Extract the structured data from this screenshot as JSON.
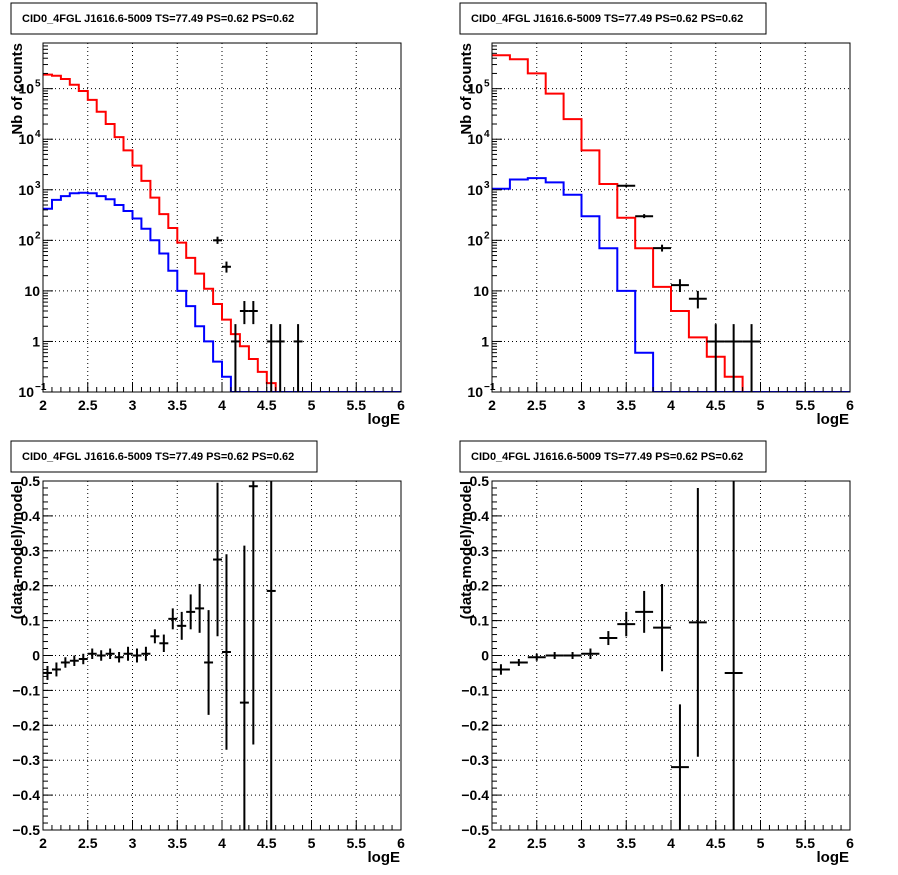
{
  "colors": {
    "data": "#000000",
    "total_model": "#ff0000",
    "source_model": "#0000ff",
    "grid": "#000000"
  },
  "chart_data": [
    {
      "id": "counts_fine",
      "type": "step",
      "title": "CID0_4FGL J1616.6-5009 TS=77.49 PS=0.62 PS=0.62",
      "xlabel": "logE",
      "ylabel": "Nb of counts",
      "xlim": [
        2,
        6
      ],
      "ylim": [
        0.1,
        800000
      ],
      "yscale": "log",
      "grid": true,
      "x_ticks": [
        "2",
        "2.5",
        "3",
        "3.5",
        "4",
        "4.5",
        "5",
        "5.5",
        "6"
      ],
      "y_ticks": [
        {
          "value": 0.1,
          "label": "10",
          "sup": "−1"
        },
        {
          "value": 1,
          "label": "1",
          "sup": ""
        },
        {
          "value": 10,
          "label": "10",
          "sup": ""
        },
        {
          "value": 100,
          "label": "10",
          "sup": "2"
        },
        {
          "value": 1000,
          "label": "10",
          "sup": "3"
        },
        {
          "value": 10000,
          "label": "10",
          "sup": "4"
        },
        {
          "value": 100000,
          "label": "10",
          "sup": "5"
        }
      ],
      "bin_edges_start": 2.0,
      "bin_width": 0.1,
      "series": [
        {
          "color_key": "total_model",
          "values": [
            190000,
            180000,
            155000,
            120000,
            90000,
            60000,
            35000,
            20000,
            11000,
            6000,
            3000,
            1500,
            700,
            330,
            175,
            90,
            45,
            22,
            11,
            5.5,
            2.7,
            1.4,
            0.8,
            0.45,
            0.25,
            0.15,
            0.1,
            0.1,
            0.1,
            0.1,
            0.1,
            0.1,
            0.1,
            0.1,
            0.1,
            0.1,
            0.1,
            0.1,
            0.1,
            0.1
          ]
        },
        {
          "color_key": "source_model",
          "values": [
            420,
            630,
            750,
            850,
            870,
            850,
            750,
            650,
            500,
            380,
            270,
            170,
            100,
            55,
            25,
            10,
            5,
            2,
            1,
            0.4,
            0.2,
            0.1,
            0.1,
            0.1,
            0.1,
            0.1,
            0.1,
            0.1,
            0.1,
            0.1,
            0.1,
            0.1,
            0.1,
            0.1,
            0.1,
            0.1,
            0.1,
            0.1,
            0.1,
            0.1
          ]
        }
      ],
      "points": [
        {
          "x": 3.95,
          "y": 100,
          "lo": 85,
          "hi": 118
        },
        {
          "x": 4.05,
          "y": 30,
          "lo": 23,
          "hi": 38
        },
        {
          "x": 4.15,
          "y": 1,
          "lo": 0.1,
          "hi": 2.2
        },
        {
          "x": 4.25,
          "y": 4,
          "lo": 2.2,
          "hi": 6.3
        },
        {
          "x": 4.35,
          "y": 4,
          "lo": 2.2,
          "hi": 6.3
        },
        {
          "x": 4.55,
          "y": 1,
          "lo": 0.1,
          "hi": 2.2
        },
        {
          "x": 4.65,
          "y": 1,
          "lo": 0.1,
          "hi": 2.2
        },
        {
          "x": 4.85,
          "y": 1,
          "lo": 0.1,
          "hi": 2.2
        }
      ]
    },
    {
      "id": "counts_coarse",
      "type": "step",
      "title": "CID0_4FGL J1616.6-5009 TS=77.49 PS=0.62 PS=0.62",
      "xlabel": "logE",
      "ylabel": "Nb of counts",
      "xlim": [
        2,
        6
      ],
      "ylim": [
        0.1,
        800000
      ],
      "yscale": "log",
      "grid": true,
      "x_ticks": [
        "2",
        "2.5",
        "3",
        "3.5",
        "4",
        "4.5",
        "5",
        "5.5",
        "6"
      ],
      "y_ticks": [
        {
          "value": 0.1,
          "label": "10",
          "sup": "−1"
        },
        {
          "value": 1,
          "label": "1",
          "sup": ""
        },
        {
          "value": 10,
          "label": "10",
          "sup": ""
        },
        {
          "value": 100,
          "label": "10",
          "sup": "2"
        },
        {
          "value": 1000,
          "label": "10",
          "sup": "3"
        },
        {
          "value": 10000,
          "label": "10",
          "sup": "4"
        },
        {
          "value": 100000,
          "label": "10",
          "sup": "5"
        }
      ],
      "bin_edges_start": 2.0,
      "bin_width": 0.2,
      "series": [
        {
          "color_key": "total_model",
          "values": [
            460000,
            380000,
            200000,
            80000,
            25000,
            6000,
            1300,
            280,
            70,
            12,
            4,
            1.2,
            0.5,
            0.2,
            0.1,
            0.1,
            0.1,
            0.1,
            0.1,
            0.1
          ]
        },
        {
          "color_key": "source_model",
          "values": [
            1050,
            1600,
            1700,
            1400,
            800,
            300,
            70,
            10,
            0.6,
            0.1,
            0.1,
            0.1,
            0.1,
            0.1,
            0.1,
            0.1,
            0.1,
            0.1,
            0.1,
            0.1
          ]
        }
      ],
      "points": [
        {
          "x": 3.5,
          "y": 1200,
          "lo": 1130,
          "hi": 1270
        },
        {
          "x": 3.7,
          "y": 300,
          "lo": 275,
          "hi": 330
        },
        {
          "x": 3.9,
          "y": 70,
          "lo": 60,
          "hi": 82
        },
        {
          "x": 4.1,
          "y": 13,
          "lo": 9.5,
          "hi": 17
        },
        {
          "x": 4.3,
          "y": 7,
          "lo": 4.5,
          "hi": 10
        },
        {
          "x": 4.5,
          "y": 1,
          "lo": 0.1,
          "hi": 2.2
        },
        {
          "x": 4.7,
          "y": 1,
          "lo": 0.1,
          "hi": 2.2
        },
        {
          "x": 4.9,
          "y": 1,
          "lo": 0.1,
          "hi": 2.2
        }
      ]
    },
    {
      "id": "residual_fine",
      "type": "scatter",
      "title": "CID0_4FGL J1616.6-5009 TS=77.49 PS=0.62 PS=0.62",
      "xlabel": "logE",
      "ylabel": "(data-model)/model",
      "xlim": [
        2,
        6
      ],
      "ylim": [
        -0.5,
        0.5
      ],
      "yscale": "linear",
      "grid": true,
      "x_ticks": [
        "2",
        "2.5",
        "3",
        "3.5",
        "4",
        "4.5",
        "5",
        "5.5",
        "6"
      ],
      "y_ticks": [
        {
          "value": -0.5,
          "label": "−0.5"
        },
        {
          "value": -0.4,
          "label": "−0.4"
        },
        {
          "value": -0.3,
          "label": "−0.3"
        },
        {
          "value": -0.2,
          "label": "−0.2"
        },
        {
          "value": -0.1,
          "label": "−0.1"
        },
        {
          "value": 0,
          "label": "0"
        },
        {
          "value": 0.1,
          "label": "0.1"
        },
        {
          "value": 0.2,
          "label": "0.2"
        },
        {
          "value": 0.3,
          "label": "0.3"
        },
        {
          "value": 0.4,
          "label": "0.4"
        },
        {
          "value": 0.5,
          "label": "0.5"
        }
      ],
      "x_halfwidth": 0.05,
      "points": [
        {
          "x": 2.05,
          "y": -0.05,
          "err": 0.02
        },
        {
          "x": 2.15,
          "y": -0.04,
          "err": 0.02
        },
        {
          "x": 2.25,
          "y": -0.02,
          "err": 0.015
        },
        {
          "x": 2.35,
          "y": -0.015,
          "err": 0.015
        },
        {
          "x": 2.45,
          "y": -0.01,
          "err": 0.015
        },
        {
          "x": 2.55,
          "y": 0.005,
          "err": 0.015
        },
        {
          "x": 2.65,
          "y": 0.0,
          "err": 0.015
        },
        {
          "x": 2.75,
          "y": 0.005,
          "err": 0.015
        },
        {
          "x": 2.85,
          "y": -0.005,
          "err": 0.015
        },
        {
          "x": 2.95,
          "y": 0.005,
          "err": 0.02
        },
        {
          "x": 3.05,
          "y": 0.0,
          "err": 0.02
        },
        {
          "x": 3.15,
          "y": 0.005,
          "err": 0.02
        },
        {
          "x": 3.25,
          "y": 0.055,
          "err": 0.02
        },
        {
          "x": 3.35,
          "y": 0.035,
          "err": 0.025
        },
        {
          "x": 3.45,
          "y": 0.105,
          "err": 0.03
        },
        {
          "x": 3.55,
          "y": 0.085,
          "err": 0.04
        },
        {
          "x": 3.65,
          "y": 0.125,
          "err": 0.05
        },
        {
          "x": 3.75,
          "y": 0.135,
          "err": 0.07
        },
        {
          "x": 3.85,
          "y": -0.02,
          "err": 0.15
        },
        {
          "x": 3.95,
          "y": 0.275,
          "err": 0.22
        },
        {
          "x": 4.05,
          "y": 0.01,
          "err": 0.28
        },
        {
          "x": 4.25,
          "y": -0.135,
          "err": 0.45
        },
        {
          "x": 4.35,
          "y": 0.485,
          "err": 0.74
        },
        {
          "x": 4.55,
          "y": 0.185,
          "err": 0.9
        }
      ]
    },
    {
      "id": "residual_coarse",
      "type": "scatter",
      "title": "CID0_4FGL J1616.6-5009 TS=77.49 PS=0.62 PS=0.62",
      "xlabel": "logE",
      "ylabel": "(data-model)/model",
      "xlim": [
        2,
        6
      ],
      "ylim": [
        -0.5,
        0.5
      ],
      "yscale": "linear",
      "grid": true,
      "x_ticks": [
        "2",
        "2.5",
        "3",
        "3.5",
        "4",
        "4.5",
        "5",
        "5.5",
        "6"
      ],
      "y_ticks": [
        {
          "value": -0.5,
          "label": "−0.5"
        },
        {
          "value": -0.4,
          "label": "−0.4"
        },
        {
          "value": -0.3,
          "label": "−0.3"
        },
        {
          "value": -0.2,
          "label": "−0.2"
        },
        {
          "value": -0.1,
          "label": "−0.1"
        },
        {
          "value": 0,
          "label": "0"
        },
        {
          "value": 0.1,
          "label": "0.1"
        },
        {
          "value": 0.2,
          "label": "0.2"
        },
        {
          "value": 0.3,
          "label": "0.3"
        },
        {
          "value": 0.4,
          "label": "0.4"
        },
        {
          "value": 0.5,
          "label": "0.5"
        }
      ],
      "x_halfwidth": 0.1,
      "points": [
        {
          "x": 2.1,
          "y": -0.04,
          "err": 0.015
        },
        {
          "x": 2.3,
          "y": -0.02,
          "err": 0.01
        },
        {
          "x": 2.5,
          "y": -0.005,
          "err": 0.01
        },
        {
          "x": 2.7,
          "y": 0.0,
          "err": 0.01
        },
        {
          "x": 2.9,
          "y": 0.0,
          "err": 0.01
        },
        {
          "x": 3.1,
          "y": 0.005,
          "err": 0.015
        },
        {
          "x": 3.3,
          "y": 0.05,
          "err": 0.02
        },
        {
          "x": 3.5,
          "y": 0.09,
          "err": 0.035
        },
        {
          "x": 3.7,
          "y": 0.125,
          "err": 0.06
        },
        {
          "x": 3.9,
          "y": 0.08,
          "err": 0.125
        },
        {
          "x": 4.1,
          "y": -0.32,
          "err": 0.18
        },
        {
          "x": 4.3,
          "y": 0.095,
          "err": 0.385
        },
        {
          "x": 4.7,
          "y": -0.05,
          "err": 0.6
        }
      ]
    }
  ]
}
